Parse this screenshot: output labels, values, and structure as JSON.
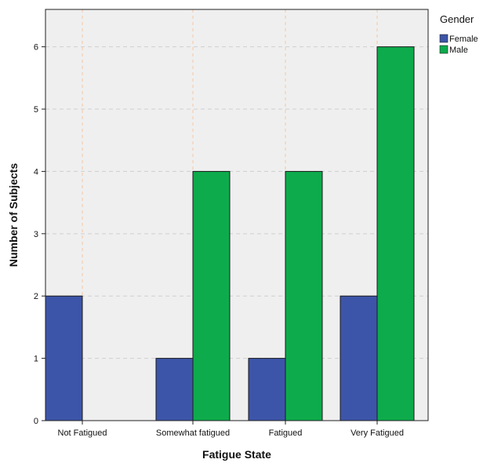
{
  "chart_data": {
    "type": "bar",
    "title": "",
    "xlabel": "Fatigue State",
    "ylabel": "Number of Subjects",
    "categories": [
      "Not Fatigued",
      "Somewhat fatigued",
      "Fatigued",
      "Very Fatigued"
    ],
    "series": [
      {
        "name": "Female",
        "values": [
          2,
          1,
          1,
          2
        ],
        "color": "#3d55a8"
      },
      {
        "name": "Male",
        "values": [
          0,
          4,
          4,
          6
        ],
        "color": "#0dab4c"
      }
    ],
    "ylim": [
      0,
      6.6
    ],
    "yticks": [
      0,
      1,
      2,
      3,
      4,
      5,
      6
    ],
    "grid": true,
    "legend": {
      "title": "Gender",
      "placement": "top-right"
    },
    "colors": {
      "plot_background": "#efefef",
      "horizontal_grid": "#cfcfcf",
      "vertical_grid": "#f4c7a4"
    }
  }
}
